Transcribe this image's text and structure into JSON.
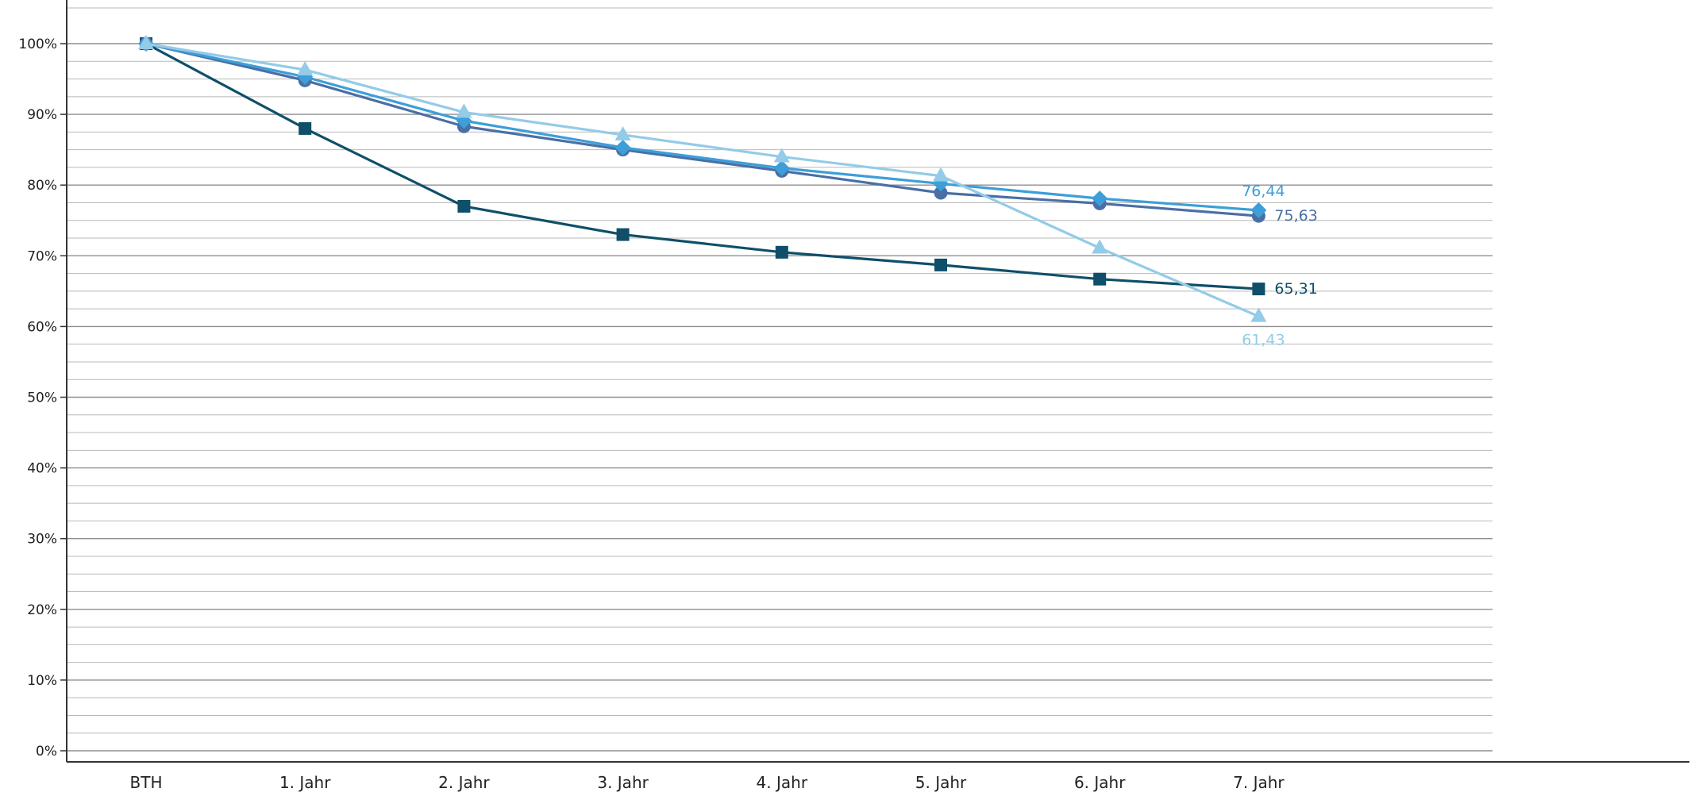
{
  "chart_data": {
    "type": "line",
    "categories": [
      "BTH",
      "1. Jahr",
      "2. Jahr",
      "3. Jahr",
      "4. Jahr",
      "5. Jahr",
      "6. Jahr",
      "7. Jahr"
    ],
    "ylim": [
      0,
      100
    ],
    "y_ticks": [
      "0%",
      "10%",
      "20%",
      "30%",
      "40%",
      "50%",
      "60%",
      "70%",
      "80%",
      "90%",
      "100%"
    ],
    "grid": true,
    "legend": "none",
    "series": [
      {
        "color": "#0f4f6a",
        "marker": "square",
        "values": [
          100,
          88.0,
          77.0,
          73.0,
          70.5,
          68.7,
          66.7,
          65.31
        ],
        "end_label": "65,31"
      },
      {
        "color": "#4a6fa5",
        "marker": "circle",
        "values": [
          100,
          94.8,
          88.3,
          85.0,
          82.0,
          78.9,
          77.4,
          75.63
        ],
        "end_label": "75,63"
      },
      {
        "color": "#3d9ed8",
        "marker": "diamond",
        "values": [
          100,
          95.3,
          89.1,
          85.3,
          82.4,
          80.2,
          78.1,
          76.44
        ],
        "end_label": "76,44"
      },
      {
        "color": "#93cbe8",
        "marker": "triangle",
        "values": [
          100,
          96.3,
          90.3,
          87.1,
          84.0,
          81.3,
          71.1,
          61.43
        ],
        "end_label": "61,43"
      }
    ]
  }
}
